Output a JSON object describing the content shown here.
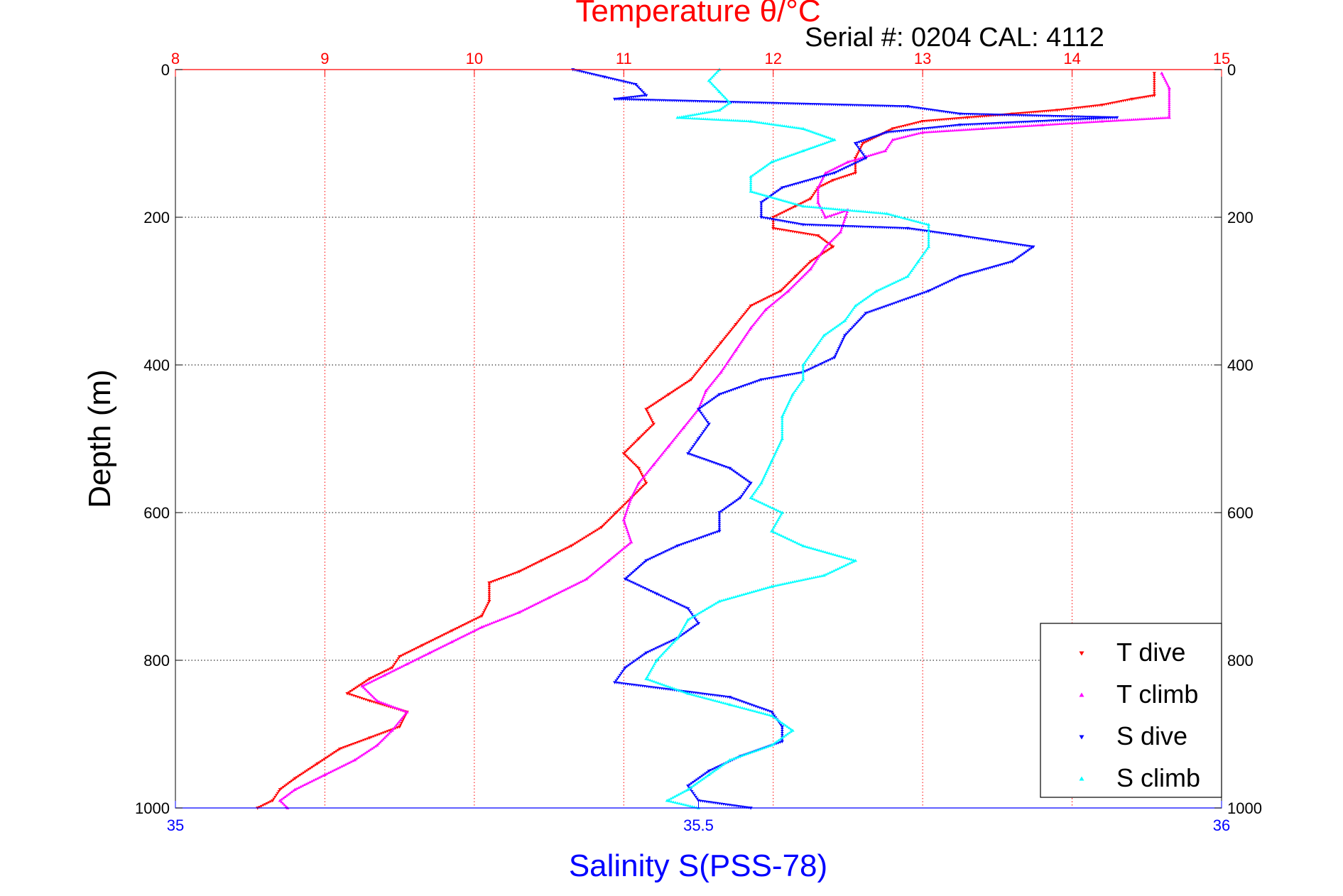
{
  "colors": {
    "temperature_axis": "#ff0000",
    "salinity_axis": "#0000ff",
    "depth_axis": "#000000",
    "t_dive": "#ff0000",
    "t_climb": "#ff00ff",
    "s_dive": "#0000ff",
    "s_climb": "#00ffff",
    "grid_temperature": "#ff0000",
    "grid_depth": "#000000"
  },
  "chart_data": {
    "type": "scatter",
    "title": "Temperature θ/°C",
    "subtitle": "Serial #: 0204  CAL: 4112",
    "xlabel": "Salinity S(PSS-78)",
    "ylabel": "Depth (m)",
    "ylim": [
      0,
      1000
    ],
    "y_reversed": true,
    "temperature_xlim": [
      8,
      15
    ],
    "salinity_xlim": [
      35,
      36
    ],
    "temperature_ticks": [
      "8",
      "9",
      "10",
      "11",
      "12",
      "13",
      "14",
      "15"
    ],
    "salinity_ticks": [
      "35",
      "35.5",
      "36"
    ],
    "depth_ticks": [
      "0",
      "200",
      "400",
      "600",
      "800",
      "1000"
    ],
    "grid": true,
    "legend_position": "bottom-right",
    "series": [
      {
        "name": "T dive",
        "axis": "temperature",
        "marker": "triangle-down",
        "points": [
          [
            14.55,
            5
          ],
          [
            14.55,
            35
          ],
          [
            14.4,
            40
          ],
          [
            14.2,
            48
          ],
          [
            13.9,
            55
          ],
          [
            13.6,
            60
          ],
          [
            13.3,
            65
          ],
          [
            13.0,
            70
          ],
          [
            12.8,
            80
          ],
          [
            12.6,
            100
          ],
          [
            12.55,
            120
          ],
          [
            12.55,
            140
          ],
          [
            12.4,
            150
          ],
          [
            12.3,
            160
          ],
          [
            12.25,
            175
          ],
          [
            12.15,
            185
          ],
          [
            12.0,
            200
          ],
          [
            12.0,
            215
          ],
          [
            12.3,
            225
          ],
          [
            12.4,
            240
          ],
          [
            12.25,
            260
          ],
          [
            12.15,
            280
          ],
          [
            12.05,
            300
          ],
          [
            11.85,
            320
          ],
          [
            11.75,
            345
          ],
          [
            11.65,
            370
          ],
          [
            11.55,
            395
          ],
          [
            11.45,
            420
          ],
          [
            11.3,
            440
          ],
          [
            11.15,
            460
          ],
          [
            11.2,
            480
          ],
          [
            11.1,
            500
          ],
          [
            11.0,
            520
          ],
          [
            11.1,
            540
          ],
          [
            11.15,
            560
          ],
          [
            11.05,
            580
          ],
          [
            10.95,
            600
          ],
          [
            10.85,
            620
          ],
          [
            10.65,
            645
          ],
          [
            10.45,
            665
          ],
          [
            10.3,
            680
          ],
          [
            10.1,
            695
          ],
          [
            10.1,
            720
          ],
          [
            10.05,
            740
          ],
          [
            9.85,
            760
          ],
          [
            9.65,
            780
          ],
          [
            9.5,
            795
          ],
          [
            9.45,
            810
          ],
          [
            9.3,
            825
          ],
          [
            9.15,
            845
          ],
          [
            9.3,
            855
          ],
          [
            9.55,
            870
          ],
          [
            9.5,
            890
          ],
          [
            9.3,
            905
          ],
          [
            9.1,
            920
          ],
          [
            8.95,
            940
          ],
          [
            8.8,
            960
          ],
          [
            8.7,
            975
          ],
          [
            8.65,
            990
          ],
          [
            8.55,
            1000
          ]
        ]
      },
      {
        "name": "T climb",
        "axis": "temperature",
        "marker": "triangle-up",
        "points": [
          [
            14.6,
            5
          ],
          [
            14.65,
            25
          ],
          [
            14.65,
            65
          ],
          [
            14.2,
            70
          ],
          [
            13.8,
            75
          ],
          [
            13.4,
            80
          ],
          [
            13.0,
            85
          ],
          [
            12.8,
            95
          ],
          [
            12.75,
            110
          ],
          [
            12.5,
            125
          ],
          [
            12.35,
            140
          ],
          [
            12.3,
            160
          ],
          [
            12.3,
            180
          ],
          [
            12.35,
            200
          ],
          [
            12.5,
            190
          ],
          [
            12.45,
            220
          ],
          [
            12.35,
            240
          ],
          [
            12.25,
            270
          ],
          [
            12.1,
            300
          ],
          [
            11.95,
            325
          ],
          [
            11.85,
            350
          ],
          [
            11.75,
            380
          ],
          [
            11.65,
            410
          ],
          [
            11.55,
            435
          ],
          [
            11.5,
            460
          ],
          [
            11.4,
            485
          ],
          [
            11.3,
            510
          ],
          [
            11.2,
            535
          ],
          [
            11.1,
            560
          ],
          [
            11.05,
            580
          ],
          [
            11.0,
            610
          ],
          [
            11.05,
            640
          ],
          [
            10.9,
            665
          ],
          [
            10.75,
            690
          ],
          [
            10.5,
            715
          ],
          [
            10.3,
            735
          ],
          [
            10.05,
            755
          ],
          [
            9.85,
            775
          ],
          [
            9.7,
            790
          ],
          [
            9.55,
            805
          ],
          [
            9.4,
            820
          ],
          [
            9.25,
            835
          ],
          [
            9.35,
            855
          ],
          [
            9.55,
            870
          ],
          [
            9.45,
            895
          ],
          [
            9.35,
            915
          ],
          [
            9.2,
            935
          ],
          [
            9.0,
            955
          ],
          [
            8.8,
            975
          ],
          [
            8.7,
            990
          ],
          [
            8.75,
            1000
          ]
        ]
      },
      {
        "name": "S dive",
        "axis": "salinity",
        "marker": "triangle-down",
        "points": [
          [
            35.38,
            0
          ],
          [
            35.41,
            10
          ],
          [
            35.44,
            20
          ],
          [
            35.45,
            35
          ],
          [
            35.42,
            40
          ],
          [
            35.7,
            50
          ],
          [
            35.75,
            60
          ],
          [
            35.9,
            65
          ],
          [
            35.75,
            75
          ],
          [
            35.68,
            85
          ],
          [
            35.65,
            100
          ],
          [
            35.66,
            120
          ],
          [
            35.63,
            140
          ],
          [
            35.58,
            160
          ],
          [
            35.56,
            180
          ],
          [
            35.56,
            200
          ],
          [
            35.6,
            210
          ],
          [
            35.7,
            215
          ],
          [
            35.75,
            225
          ],
          [
            35.82,
            240
          ],
          [
            35.8,
            260
          ],
          [
            35.75,
            280
          ],
          [
            35.72,
            300
          ],
          [
            35.66,
            330
          ],
          [
            35.64,
            360
          ],
          [
            35.63,
            390
          ],
          [
            35.6,
            410
          ],
          [
            35.56,
            420
          ],
          [
            35.52,
            440
          ],
          [
            35.5,
            460
          ],
          [
            35.51,
            480
          ],
          [
            35.5,
            500
          ],
          [
            35.49,
            520
          ],
          [
            35.53,
            540
          ],
          [
            35.55,
            560
          ],
          [
            35.54,
            580
          ],
          [
            35.52,
            600
          ],
          [
            35.52,
            625
          ],
          [
            35.48,
            645
          ],
          [
            35.45,
            665
          ],
          [
            35.43,
            690
          ],
          [
            35.46,
            710
          ],
          [
            35.49,
            730
          ],
          [
            35.5,
            750
          ],
          [
            35.48,
            770
          ],
          [
            35.45,
            790
          ],
          [
            35.43,
            810
          ],
          [
            35.42,
            830
          ],
          [
            35.53,
            850
          ],
          [
            35.57,
            870
          ],
          [
            35.58,
            890
          ],
          [
            35.58,
            910
          ],
          [
            35.54,
            930
          ],
          [
            35.51,
            950
          ],
          [
            35.49,
            970
          ],
          [
            35.5,
            990
          ],
          [
            35.55,
            1000
          ]
        ]
      },
      {
        "name": "S climb",
        "axis": "salinity",
        "marker": "triangle-up",
        "points": [
          [
            35.52,
            0
          ],
          [
            35.51,
            15
          ],
          [
            35.52,
            30
          ],
          [
            35.53,
            45
          ],
          [
            35.52,
            55
          ],
          [
            35.48,
            65
          ],
          [
            35.55,
            70
          ],
          [
            35.6,
            80
          ],
          [
            35.63,
            95
          ],
          [
            35.6,
            110
          ],
          [
            35.57,
            125
          ],
          [
            35.55,
            145
          ],
          [
            35.55,
            165
          ],
          [
            35.6,
            185
          ],
          [
            35.68,
            195
          ],
          [
            35.72,
            210
          ],
          [
            35.72,
            240
          ],
          [
            35.71,
            260
          ],
          [
            35.7,
            280
          ],
          [
            35.67,
            300
          ],
          [
            35.65,
            320
          ],
          [
            35.64,
            340
          ],
          [
            35.62,
            360
          ],
          [
            35.61,
            380
          ],
          [
            35.6,
            400
          ],
          [
            35.6,
            420
          ],
          [
            35.59,
            440
          ],
          [
            35.58,
            470
          ],
          [
            35.58,
            500
          ],
          [
            35.57,
            530
          ],
          [
            35.56,
            560
          ],
          [
            35.55,
            580
          ],
          [
            35.58,
            600
          ],
          [
            35.57,
            625
          ],
          [
            35.6,
            645
          ],
          [
            35.65,
            665
          ],
          [
            35.62,
            685
          ],
          [
            35.57,
            700
          ],
          [
            35.52,
            720
          ],
          [
            35.49,
            745
          ],
          [
            35.48,
            770
          ],
          [
            35.46,
            800
          ],
          [
            35.45,
            825
          ],
          [
            35.49,
            845
          ],
          [
            35.53,
            860
          ],
          [
            35.57,
            875
          ],
          [
            35.59,
            895
          ],
          [
            35.57,
            915
          ],
          [
            35.53,
            935
          ],
          [
            35.51,
            955
          ],
          [
            35.49,
            975
          ],
          [
            35.47,
            990
          ],
          [
            35.5,
            1000
          ]
        ]
      }
    ]
  }
}
